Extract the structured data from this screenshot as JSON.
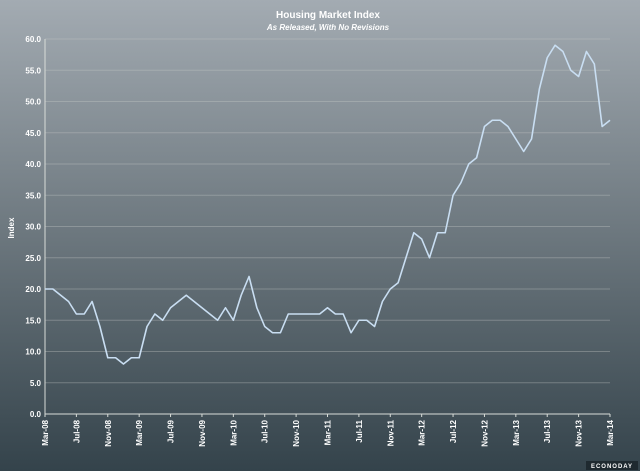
{
  "chart_data": {
    "type": "line",
    "title": "Housing Market Index",
    "subtitle": "As Released, With No Revisions",
    "y_label": "Index",
    "brand": "ECONODAY",
    "color": "#c9def2",
    "categories": [
      "Mar-08",
      null,
      null,
      null,
      "Jul-08",
      null,
      null,
      null,
      "Nov-08",
      null,
      null,
      null,
      "Mar-09",
      null,
      null,
      null,
      "Jul-09",
      null,
      null,
      null,
      "Nov-09",
      null,
      null,
      null,
      "Mar-10",
      null,
      null,
      null,
      "Jul-10",
      null,
      null,
      null,
      "Nov-10",
      null,
      null,
      null,
      "Mar-11",
      null,
      null,
      null,
      "Jul-11",
      null,
      null,
      null,
      "Nov-11",
      null,
      null,
      null,
      "Mar-12",
      null,
      null,
      null,
      "Jul-12",
      null,
      null,
      null,
      "Nov-12",
      null,
      null,
      null,
      "Mar-13",
      null,
      null,
      null,
      "Jul-13",
      null,
      null,
      null,
      "Nov-13",
      null,
      null,
      null,
      "Mar-14"
    ],
    "values": [
      20,
      20,
      19,
      18,
      16,
      16,
      18,
      14,
      9,
      9,
      8,
      9,
      9,
      14,
      16,
      15,
      17,
      18,
      19,
      18,
      17,
      16,
      15,
      17,
      15,
      19,
      22,
      17,
      14,
      13,
      13,
      16,
      16,
      16,
      16,
      16,
      17,
      16,
      16,
      13,
      15,
      15,
      14,
      18,
      20,
      21,
      25,
      29,
      28,
      25,
      29,
      29,
      35,
      37,
      40,
      41,
      46,
      47,
      47,
      46,
      44,
      42,
      44,
      52,
      57,
      59,
      58,
      55,
      54,
      58,
      56,
      46,
      47
    ],
    "ylim": [
      0,
      60
    ],
    "yticks": [
      {
        "value": 0,
        "label": "0.0"
      },
      {
        "value": 5,
        "label": "5.0"
      },
      {
        "value": 10,
        "label": "10.0"
      },
      {
        "value": 15,
        "label": "15.0"
      },
      {
        "value": 20,
        "label": "20.0"
      },
      {
        "value": 25,
        "label": "25.0"
      },
      {
        "value": 30,
        "label": "30.0"
      },
      {
        "value": 35,
        "label": "35.0"
      },
      {
        "value": 40,
        "label": "40.0"
      },
      {
        "value": 45,
        "label": "45.0"
      },
      {
        "value": 50,
        "label": "50.0"
      },
      {
        "value": 55,
        "label": "55.0"
      },
      {
        "value": 60,
        "label": "60.0"
      }
    ],
    "grid": true
  }
}
